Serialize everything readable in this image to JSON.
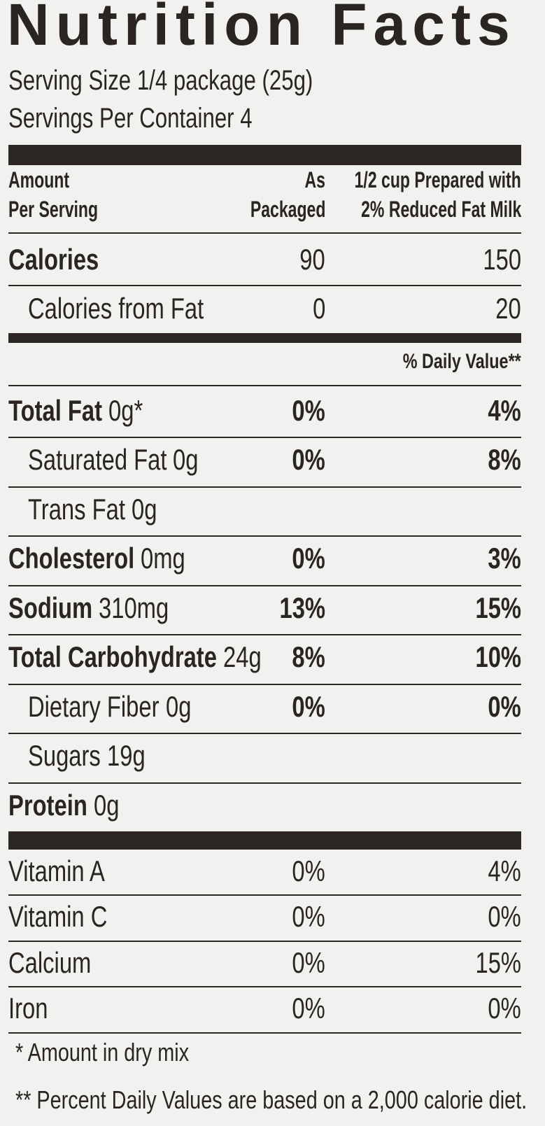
{
  "title": "Nutrition Facts",
  "serving_size": "Serving Size 1/4 package (25g)",
  "servings_per_container": "Servings Per Container 4",
  "column_header": {
    "amount": [
      "Amount",
      "Per Serving"
    ],
    "packaged": [
      "As",
      "Packaged"
    ],
    "prepared": [
      "1/2 cup Prepared with",
      "2% Reduced Fat Milk"
    ]
  },
  "calories": [
    {
      "name": "Calories",
      "packaged": "90",
      "prepared": "150"
    },
    {
      "name": "Calories from Fat",
      "packaged": "0",
      "prepared": "20"
    }
  ],
  "daily_value_header": "% Daily Value**",
  "nutrients": [
    {
      "name": "Total Fat",
      "amount": "0g*",
      "packaged": "0%",
      "prepared": "4%"
    },
    {
      "name": "Saturated Fat",
      "amount": "0g",
      "packaged": "0%",
      "prepared": "8%"
    },
    {
      "name": "Trans Fat",
      "amount": "0g"
    },
    {
      "name": "Cholesterol",
      "amount": "0mg",
      "packaged": "0%",
      "prepared": "3%"
    },
    {
      "name": "Sodium",
      "amount": "310mg",
      "packaged": "13%",
      "prepared": "15%"
    },
    {
      "name": "Total Carbohydrate",
      "amount": "24g",
      "packaged": "8%",
      "prepared": "10%"
    },
    {
      "name": "Dietary Fiber",
      "amount": "0g",
      "packaged": "0%",
      "prepared": "0%"
    },
    {
      "name": "Sugars",
      "amount": "19g"
    },
    {
      "name": "Protein",
      "amount": "0g"
    }
  ],
  "vitamins": [
    {
      "name": "Vitamin A",
      "packaged": "0%",
      "prepared": "4%"
    },
    {
      "name": "Vitamin C",
      "packaged": "0%",
      "prepared": "0%"
    },
    {
      "name": "Calcium",
      "packaged": "0%",
      "prepared": "15%"
    },
    {
      "name": "Iron",
      "packaged": "0%",
      "prepared": "0%"
    }
  ],
  "footnotes": [
    "* Amount in dry mix",
    "** Percent Daily Values are based on a 2,000 calorie diet."
  ]
}
